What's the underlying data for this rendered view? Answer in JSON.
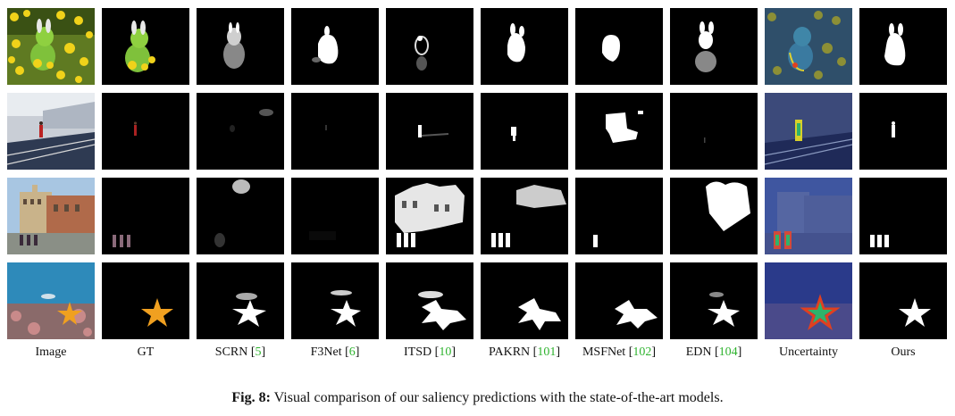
{
  "columns": [
    {
      "name": "Image",
      "ref": ""
    },
    {
      "name": "GT",
      "ref": ""
    },
    {
      "name": "SCRN",
      "ref": "5"
    },
    {
      "name": "F3Net",
      "ref": "6"
    },
    {
      "name": "ITSD",
      "ref": "10"
    },
    {
      "name": "PAKRN",
      "ref": "101"
    },
    {
      "name": "MSFNet",
      "ref": "102"
    },
    {
      "name": "EDN",
      "ref": "104"
    },
    {
      "name": "Uncertainty",
      "ref": ""
    },
    {
      "name": "Ours",
      "ref": ""
    }
  ],
  "rows": [
    "toy-in-flowers",
    "runner-on-track",
    "people-by-building",
    "starfish-underwater"
  ],
  "caption": {
    "label": "Fig. 8:",
    "text": "Visual comparison of our saliency predictions with the state-of-the-art models."
  },
  "colors": {
    "reference_link": "#2fb32f",
    "mask_foreground": "#ffffff",
    "mask_background": "#000000"
  }
}
